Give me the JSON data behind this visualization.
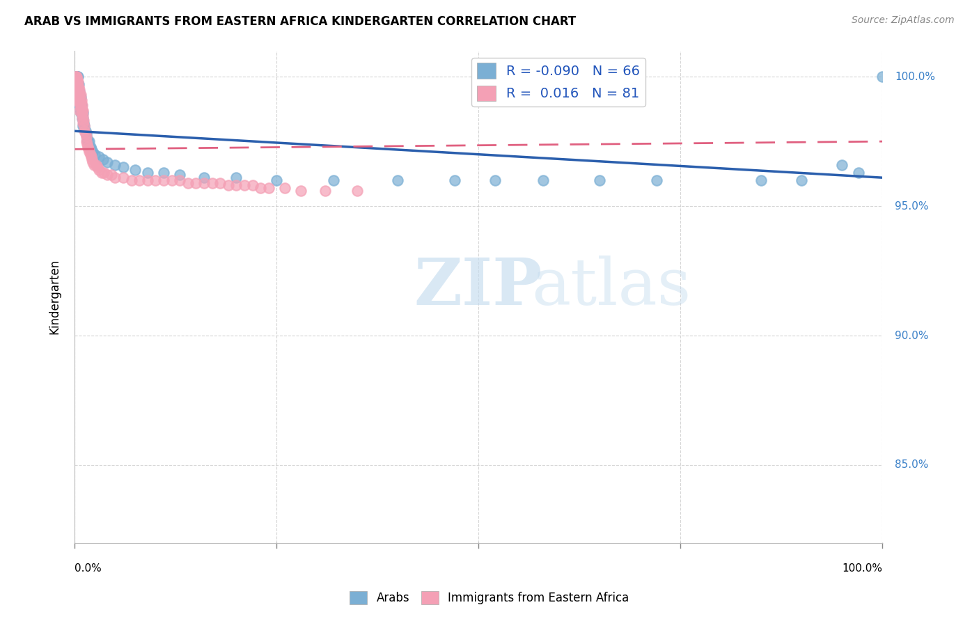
{
  "title": "ARAB VS IMMIGRANTS FROM EASTERN AFRICA KINDERGARTEN CORRELATION CHART",
  "source": "Source: ZipAtlas.com",
  "ylabel": "Kindergarten",
  "right_yticks": [
    "100.0%",
    "95.0%",
    "90.0%",
    "85.0%"
  ],
  "right_ytick_vals": [
    1.0,
    0.95,
    0.9,
    0.85
  ],
  "legend_blue_label": "Arabs",
  "legend_pink_label": "Immigrants from Eastern Africa",
  "r_blue": -0.09,
  "n_blue": 66,
  "r_pink": 0.016,
  "n_pink": 81,
  "blue_color": "#7bafd4",
  "pink_color": "#f4a0b5",
  "blue_line_color": "#2b5fad",
  "pink_line_color": "#e06080",
  "watermark_zip": "ZIP",
  "watermark_atlas": "atlas",
  "xmin": 0.0,
  "xmax": 1.0,
  "ymin": 0.82,
  "ymax": 1.01,
  "blue_line_y0": 0.979,
  "blue_line_y1": 0.961,
  "pink_line_y0": 0.972,
  "pink_line_y1": 0.975,
  "grid_color": "#cccccc",
  "background_color": "#ffffff",
  "blue_scatter_x": [
    0.001,
    0.001,
    0.001,
    0.002,
    0.002,
    0.002,
    0.002,
    0.003,
    0.003,
    0.003,
    0.004,
    0.004,
    0.004,
    0.004,
    0.005,
    0.005,
    0.005,
    0.005,
    0.006,
    0.006,
    0.006,
    0.007,
    0.007,
    0.007,
    0.008,
    0.008,
    0.009,
    0.009,
    0.01,
    0.01,
    0.01,
    0.011,
    0.012,
    0.013,
    0.014,
    0.015,
    0.016,
    0.018,
    0.019,
    0.02,
    0.022,
    0.025,
    0.03,
    0.035,
    0.04,
    0.05,
    0.06,
    0.075,
    0.09,
    0.11,
    0.13,
    0.16,
    0.2,
    0.25,
    0.32,
    0.4,
    0.47,
    0.52,
    0.58,
    0.65,
    0.72,
    0.85,
    0.9,
    0.95,
    0.97,
    1.0
  ],
  "blue_scatter_y": [
    1.0,
    1.0,
    1.0,
    1.0,
    1.0,
    1.0,
    0.997,
    1.0,
    1.0,
    0.997,
    1.0,
    0.997,
    0.994,
    0.99,
    0.997,
    0.994,
    0.99,
    0.988,
    0.994,
    0.992,
    0.989,
    0.992,
    0.989,
    0.986,
    0.989,
    0.987,
    0.987,
    0.984,
    0.986,
    0.984,
    0.981,
    0.982,
    0.981,
    0.979,
    0.978,
    0.976,
    0.975,
    0.975,
    0.973,
    0.972,
    0.971,
    0.97,
    0.969,
    0.968,
    0.967,
    0.966,
    0.965,
    0.964,
    0.963,
    0.963,
    0.962,
    0.961,
    0.961,
    0.96,
    0.96,
    0.96,
    0.96,
    0.96,
    0.96,
    0.96,
    0.96,
    0.96,
    0.96,
    0.966,
    0.963,
    1.0
  ],
  "pink_scatter_x": [
    0.001,
    0.001,
    0.001,
    0.002,
    0.002,
    0.002,
    0.002,
    0.002,
    0.003,
    0.003,
    0.003,
    0.003,
    0.004,
    0.004,
    0.004,
    0.004,
    0.005,
    0.005,
    0.005,
    0.006,
    0.006,
    0.006,
    0.006,
    0.007,
    0.007,
    0.007,
    0.008,
    0.008,
    0.008,
    0.009,
    0.009,
    0.009,
    0.01,
    0.01,
    0.01,
    0.011,
    0.012,
    0.012,
    0.013,
    0.014,
    0.014,
    0.015,
    0.016,
    0.017,
    0.018,
    0.019,
    0.02,
    0.021,
    0.022,
    0.024,
    0.026,
    0.028,
    0.03,
    0.033,
    0.036,
    0.04,
    0.045,
    0.05,
    0.06,
    0.07,
    0.08,
    0.09,
    0.1,
    0.11,
    0.12,
    0.13,
    0.14,
    0.15,
    0.16,
    0.17,
    0.18,
    0.19,
    0.2,
    0.21,
    0.22,
    0.23,
    0.24,
    0.26,
    0.28,
    0.31,
    0.35
  ],
  "pink_scatter_y": [
    1.0,
    1.0,
    0.998,
    1.0,
    0.998,
    0.997,
    0.995,
    0.993,
    0.999,
    0.997,
    0.995,
    0.992,
    0.998,
    0.996,
    0.994,
    0.991,
    0.996,
    0.993,
    0.99,
    0.995,
    0.993,
    0.99,
    0.987,
    0.993,
    0.99,
    0.988,
    0.991,
    0.988,
    0.986,
    0.989,
    0.987,
    0.984,
    0.987,
    0.985,
    0.982,
    0.983,
    0.981,
    0.979,
    0.978,
    0.977,
    0.975,
    0.974,
    0.973,
    0.972,
    0.971,
    0.97,
    0.969,
    0.968,
    0.967,
    0.966,
    0.966,
    0.965,
    0.964,
    0.963,
    0.963,
    0.962,
    0.962,
    0.961,
    0.961,
    0.96,
    0.96,
    0.96,
    0.96,
    0.96,
    0.96,
    0.96,
    0.959,
    0.959,
    0.959,
    0.959,
    0.959,
    0.958,
    0.958,
    0.958,
    0.958,
    0.957,
    0.957,
    0.957,
    0.956,
    0.956,
    0.956
  ]
}
